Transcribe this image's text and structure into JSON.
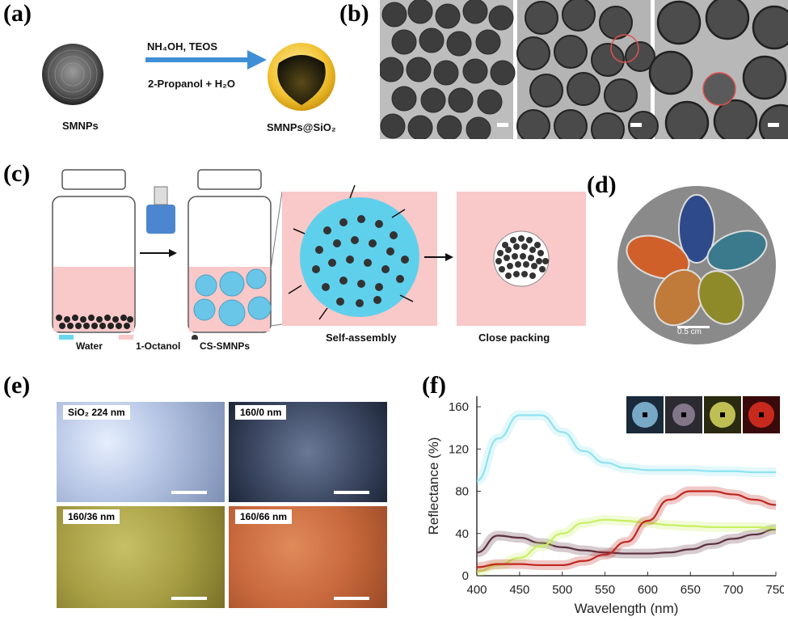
{
  "panels": {
    "a": {
      "label": "(a)",
      "reagents": "NH₄OH, TEOS",
      "solvents": "2-Propanol + H₂O",
      "left_caption": "SMNPs",
      "right_caption": "SMNPs@SiO₂"
    },
    "b": {
      "label": "(b)"
    },
    "c": {
      "label": "(c)",
      "legend": {
        "water": "Water",
        "octanol": "1-Octanol",
        "particles": "CS-SMNPs"
      },
      "self_assembly": "Self-assembly",
      "close_packing": "Close packing"
    },
    "d": {
      "label": "(d)",
      "scale": "0.5 cm"
    },
    "e": {
      "label": "(e)",
      "tiles": [
        {
          "label": "SiO₂ 224 nm",
          "color": "#b9c8e6"
        },
        {
          "label": "160/0 nm",
          "color": "#4a5670"
        },
        {
          "label": "160/36 nm",
          "color": "#a9a046"
        },
        {
          "label": "160/66 nm",
          "color": "#c96a3e"
        }
      ]
    },
    "f": {
      "label": "(f)"
    }
  },
  "chart_data": {
    "type": "line",
    "xlabel": "Wavelength (nm)",
    "ylabel": "Reflectance (%)",
    "xlim": [
      400,
      750
    ],
    "ylim": [
      0,
      170
    ],
    "xticks": [
      400,
      450,
      500,
      550,
      600,
      650,
      700,
      750
    ],
    "yticks": [
      0,
      40,
      80,
      120,
      160
    ],
    "grid": false,
    "x": [
      400,
      425,
      450,
      475,
      500,
      525,
      550,
      575,
      600,
      625,
      650,
      675,
      700,
      725,
      750
    ],
    "series": [
      {
        "color": "#8fe3f0",
        "values": [
          90,
          130,
          152,
          152,
          136,
          118,
          107,
          102,
          100,
          100,
          100,
          99,
          99,
          98,
          98
        ]
      },
      {
        "color": "#5a3040",
        "values": [
          22,
          38,
          36,
          31,
          27,
          24,
          22,
          21,
          21,
          22,
          25,
          30,
          35,
          39,
          44
        ]
      },
      {
        "color": "#c8f060",
        "values": [
          4,
          10,
          17,
          28,
          40,
          50,
          53,
          52,
          50,
          48,
          47,
          46,
          46,
          46,
          45
        ]
      },
      {
        "color": "#c0271f",
        "values": [
          8,
          11,
          11,
          10,
          10,
          14,
          20,
          32,
          52,
          72,
          80,
          80,
          77,
          72,
          67
        ]
      }
    ]
  }
}
